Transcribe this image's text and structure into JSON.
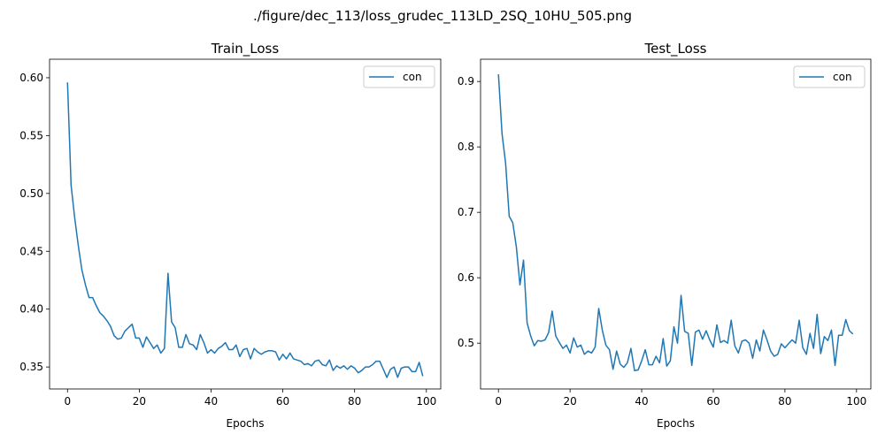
{
  "figure": {
    "suptitle": "./figure/dec_113/loss_grudec_113LD_2SQ_10HU_505.png"
  },
  "chart_data": [
    {
      "type": "line",
      "title": "Train_Loss",
      "xlabel": "Epochs",
      "ylabel": "",
      "xlim": [
        -5,
        104
      ],
      "ylim": [
        0.331,
        0.616
      ],
      "xticks": [
        "0",
        "20",
        "40",
        "60",
        "80",
        "100"
      ],
      "yticks": [
        "0.35",
        "0.40",
        "0.45",
        "0.50",
        "0.55",
        "0.60"
      ],
      "legend_position": "top-right",
      "grid": false,
      "series": [
        {
          "name": "con",
          "color": "#1f77b4",
          "x": [
            0,
            1,
            2,
            3,
            4,
            5,
            6,
            7,
            8,
            9,
            10,
            11,
            12,
            13,
            14,
            15,
            16,
            17,
            18,
            19,
            20,
            21,
            22,
            23,
            24,
            25,
            26,
            27,
            28,
            29,
            30,
            31,
            32,
            33,
            34,
            35,
            36,
            37,
            38,
            39,
            40,
            41,
            42,
            43,
            44,
            45,
            46,
            47,
            48,
            49,
            50,
            51,
            52,
            53,
            54,
            55,
            56,
            57,
            58,
            59,
            60,
            61,
            62,
            63,
            64,
            65,
            66,
            67,
            68,
            69,
            70,
            71,
            72,
            73,
            74,
            75,
            76,
            77,
            78,
            79,
            80,
            81,
            82,
            83,
            84,
            85,
            86,
            87,
            88,
            89,
            90,
            91,
            92,
            93,
            94,
            95,
            96,
            97,
            98,
            99
          ],
          "values": [
            0.596,
            0.507,
            0.479,
            0.455,
            0.434,
            0.421,
            0.41,
            0.41,
            0.403,
            0.397,
            0.394,
            0.39,
            0.385,
            0.377,
            0.374,
            0.375,
            0.381,
            0.384,
            0.387,
            0.375,
            0.375,
            0.367,
            0.376,
            0.371,
            0.366,
            0.369,
            0.362,
            0.366,
            0.431,
            0.389,
            0.384,
            0.367,
            0.367,
            0.378,
            0.37,
            0.369,
            0.365,
            0.378,
            0.371,
            0.362,
            0.365,
            0.362,
            0.366,
            0.368,
            0.371,
            0.365,
            0.365,
            0.369,
            0.359,
            0.365,
            0.366,
            0.357,
            0.366,
            0.363,
            0.361,
            0.363,
            0.364,
            0.364,
            0.363,
            0.356,
            0.361,
            0.357,
            0.362,
            0.357,
            0.356,
            0.355,
            0.352,
            0.353,
            0.351,
            0.355,
            0.356,
            0.352,
            0.351,
            0.356,
            0.347,
            0.351,
            0.349,
            0.351,
            0.348,
            0.351,
            0.349,
            0.345,
            0.347,
            0.35,
            0.35,
            0.352,
            0.355,
            0.355,
            0.348,
            0.341,
            0.348,
            0.35,
            0.341,
            0.349,
            0.35,
            0.35,
            0.346,
            0.346,
            0.354,
            0.342
          ]
        }
      ]
    },
    {
      "type": "line",
      "title": "Test_Loss",
      "xlabel": "Epochs",
      "ylabel": "",
      "xlim": [
        -5,
        104
      ],
      "ylim": [
        0.43,
        0.934
      ],
      "xticks": [
        "0",
        "20",
        "40",
        "60",
        "80",
        "100"
      ],
      "yticks": [
        "0.5",
        "0.6",
        "0.7",
        "0.8",
        "0.9"
      ],
      "legend_position": "top-right",
      "grid": false,
      "series": [
        {
          "name": "con",
          "color": "#1f77b4",
          "x": [
            0,
            1,
            2,
            3,
            4,
            5,
            6,
            7,
            8,
            9,
            10,
            11,
            12,
            13,
            14,
            15,
            16,
            17,
            18,
            19,
            20,
            21,
            22,
            23,
            24,
            25,
            26,
            27,
            28,
            29,
            30,
            31,
            32,
            33,
            34,
            35,
            36,
            37,
            38,
            39,
            40,
            41,
            42,
            43,
            44,
            45,
            46,
            47,
            48,
            49,
            50,
            51,
            52,
            53,
            54,
            55,
            56,
            57,
            58,
            59,
            60,
            61,
            62,
            63,
            64,
            65,
            66,
            67,
            68,
            69,
            70,
            71,
            72,
            73,
            74,
            75,
            76,
            77,
            78,
            79,
            80,
            81,
            82,
            83,
            84,
            85,
            86,
            87,
            88,
            89,
            90,
            91,
            92,
            93,
            94,
            95,
            96,
            97,
            98,
            99
          ],
          "values": [
            0.911,
            0.82,
            0.775,
            0.694,
            0.684,
            0.647,
            0.589,
            0.627,
            0.531,
            0.511,
            0.496,
            0.504,
            0.503,
            0.505,
            0.516,
            0.549,
            0.511,
            0.501,
            0.492,
            0.497,
            0.485,
            0.508,
            0.494,
            0.497,
            0.483,
            0.488,
            0.485,
            0.494,
            0.553,
            0.52,
            0.497,
            0.49,
            0.46,
            0.488,
            0.468,
            0.463,
            0.47,
            0.492,
            0.458,
            0.459,
            0.473,
            0.49,
            0.467,
            0.467,
            0.48,
            0.47,
            0.507,
            0.465,
            0.473,
            0.525,
            0.5,
            0.573,
            0.518,
            0.515,
            0.466,
            0.517,
            0.52,
            0.506,
            0.519,
            0.505,
            0.494,
            0.528,
            0.501,
            0.504,
            0.5,
            0.535,
            0.496,
            0.485,
            0.503,
            0.505,
            0.5,
            0.477,
            0.505,
            0.488,
            0.52,
            0.505,
            0.488,
            0.48,
            0.483,
            0.499,
            0.493,
            0.499,
            0.505,
            0.5,
            0.535,
            0.493,
            0.483,
            0.515,
            0.492,
            0.544,
            0.484,
            0.51,
            0.504,
            0.52,
            0.466,
            0.512,
            0.512,
            0.536,
            0.519,
            0.514
          ]
        }
      ]
    }
  ]
}
